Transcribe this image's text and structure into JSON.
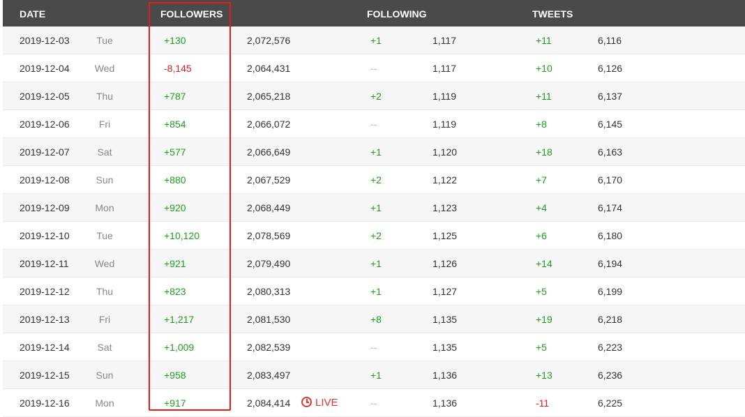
{
  "header": {
    "date": "DATE",
    "followers": "FOLLOWERS",
    "following": "FOLLOWING",
    "tweets": "TWEETS"
  },
  "rows": [
    {
      "date": "2019-12-03",
      "day": "Tue",
      "followers_delta": "+130",
      "followers_total": "2,072,576",
      "live": "",
      "following_delta": "+1",
      "following_total": "1,117",
      "tweets_delta": "+11",
      "tweets_total": "6,116"
    },
    {
      "date": "2019-12-04",
      "day": "Wed",
      "followers_delta": "-8,145",
      "followers_total": "2,064,431",
      "live": "",
      "following_delta": "--",
      "following_total": "1,117",
      "tweets_delta": "+10",
      "tweets_total": "6,126"
    },
    {
      "date": "2019-12-05",
      "day": "Thu",
      "followers_delta": "+787",
      "followers_total": "2,065,218",
      "live": "",
      "following_delta": "+2",
      "following_total": "1,119",
      "tweets_delta": "+11",
      "tweets_total": "6,137"
    },
    {
      "date": "2019-12-06",
      "day": "Fri",
      "followers_delta": "+854",
      "followers_total": "2,066,072",
      "live": "",
      "following_delta": "--",
      "following_total": "1,119",
      "tweets_delta": "+8",
      "tweets_total": "6,145"
    },
    {
      "date": "2019-12-07",
      "day": "Sat",
      "followers_delta": "+577",
      "followers_total": "2,066,649",
      "live": "",
      "following_delta": "+1",
      "following_total": "1,120",
      "tweets_delta": "+18",
      "tweets_total": "6,163"
    },
    {
      "date": "2019-12-08",
      "day": "Sun",
      "followers_delta": "+880",
      "followers_total": "2,067,529",
      "live": "",
      "following_delta": "+2",
      "following_total": "1,122",
      "tweets_delta": "+7",
      "tweets_total": "6,170"
    },
    {
      "date": "2019-12-09",
      "day": "Mon",
      "followers_delta": "+920",
      "followers_total": "2,068,449",
      "live": "",
      "following_delta": "+1",
      "following_total": "1,123",
      "tweets_delta": "+4",
      "tweets_total": "6,174"
    },
    {
      "date": "2019-12-10",
      "day": "Tue",
      "followers_delta": "+10,120",
      "followers_total": "2,078,569",
      "live": "",
      "following_delta": "+2",
      "following_total": "1,125",
      "tweets_delta": "+6",
      "tweets_total": "6,180"
    },
    {
      "date": "2019-12-11",
      "day": "Wed",
      "followers_delta": "+921",
      "followers_total": "2,079,490",
      "live": "",
      "following_delta": "+1",
      "following_total": "1,126",
      "tweets_delta": "+14",
      "tweets_total": "6,194"
    },
    {
      "date": "2019-12-12",
      "day": "Thu",
      "followers_delta": "+823",
      "followers_total": "2,080,313",
      "live": "",
      "following_delta": "+1",
      "following_total": "1,127",
      "tweets_delta": "+5",
      "tweets_total": "6,199"
    },
    {
      "date": "2019-12-13",
      "day": "Fri",
      "followers_delta": "+1,217",
      "followers_total": "2,081,530",
      "live": "",
      "following_delta": "+8",
      "following_total": "1,135",
      "tweets_delta": "+19",
      "tweets_total": "6,218"
    },
    {
      "date": "2019-12-14",
      "day": "Sat",
      "followers_delta": "+1,009",
      "followers_total": "2,082,539",
      "live": "",
      "following_delta": "--",
      "following_total": "1,135",
      "tweets_delta": "+5",
      "tweets_total": "6,223"
    },
    {
      "date": "2019-12-15",
      "day": "Sun",
      "followers_delta": "+958",
      "followers_total": "2,083,497",
      "live": "",
      "following_delta": "+1",
      "following_total": "1,136",
      "tweets_delta": "+13",
      "tweets_total": "6,236"
    },
    {
      "date": "2019-12-16",
      "day": "Mon",
      "followers_delta": "+917",
      "followers_total": "2,084,414",
      "live": "LIVE",
      "following_delta": "--",
      "following_total": "1,136",
      "tweets_delta": "-11",
      "tweets_total": "6,225"
    }
  ],
  "colors": {
    "header_bg": "#4a4a4a",
    "positive": "#1aa01a",
    "negative": "#d42020",
    "live": "#e0352b",
    "highlight_box": "#e51c1c"
  }
}
